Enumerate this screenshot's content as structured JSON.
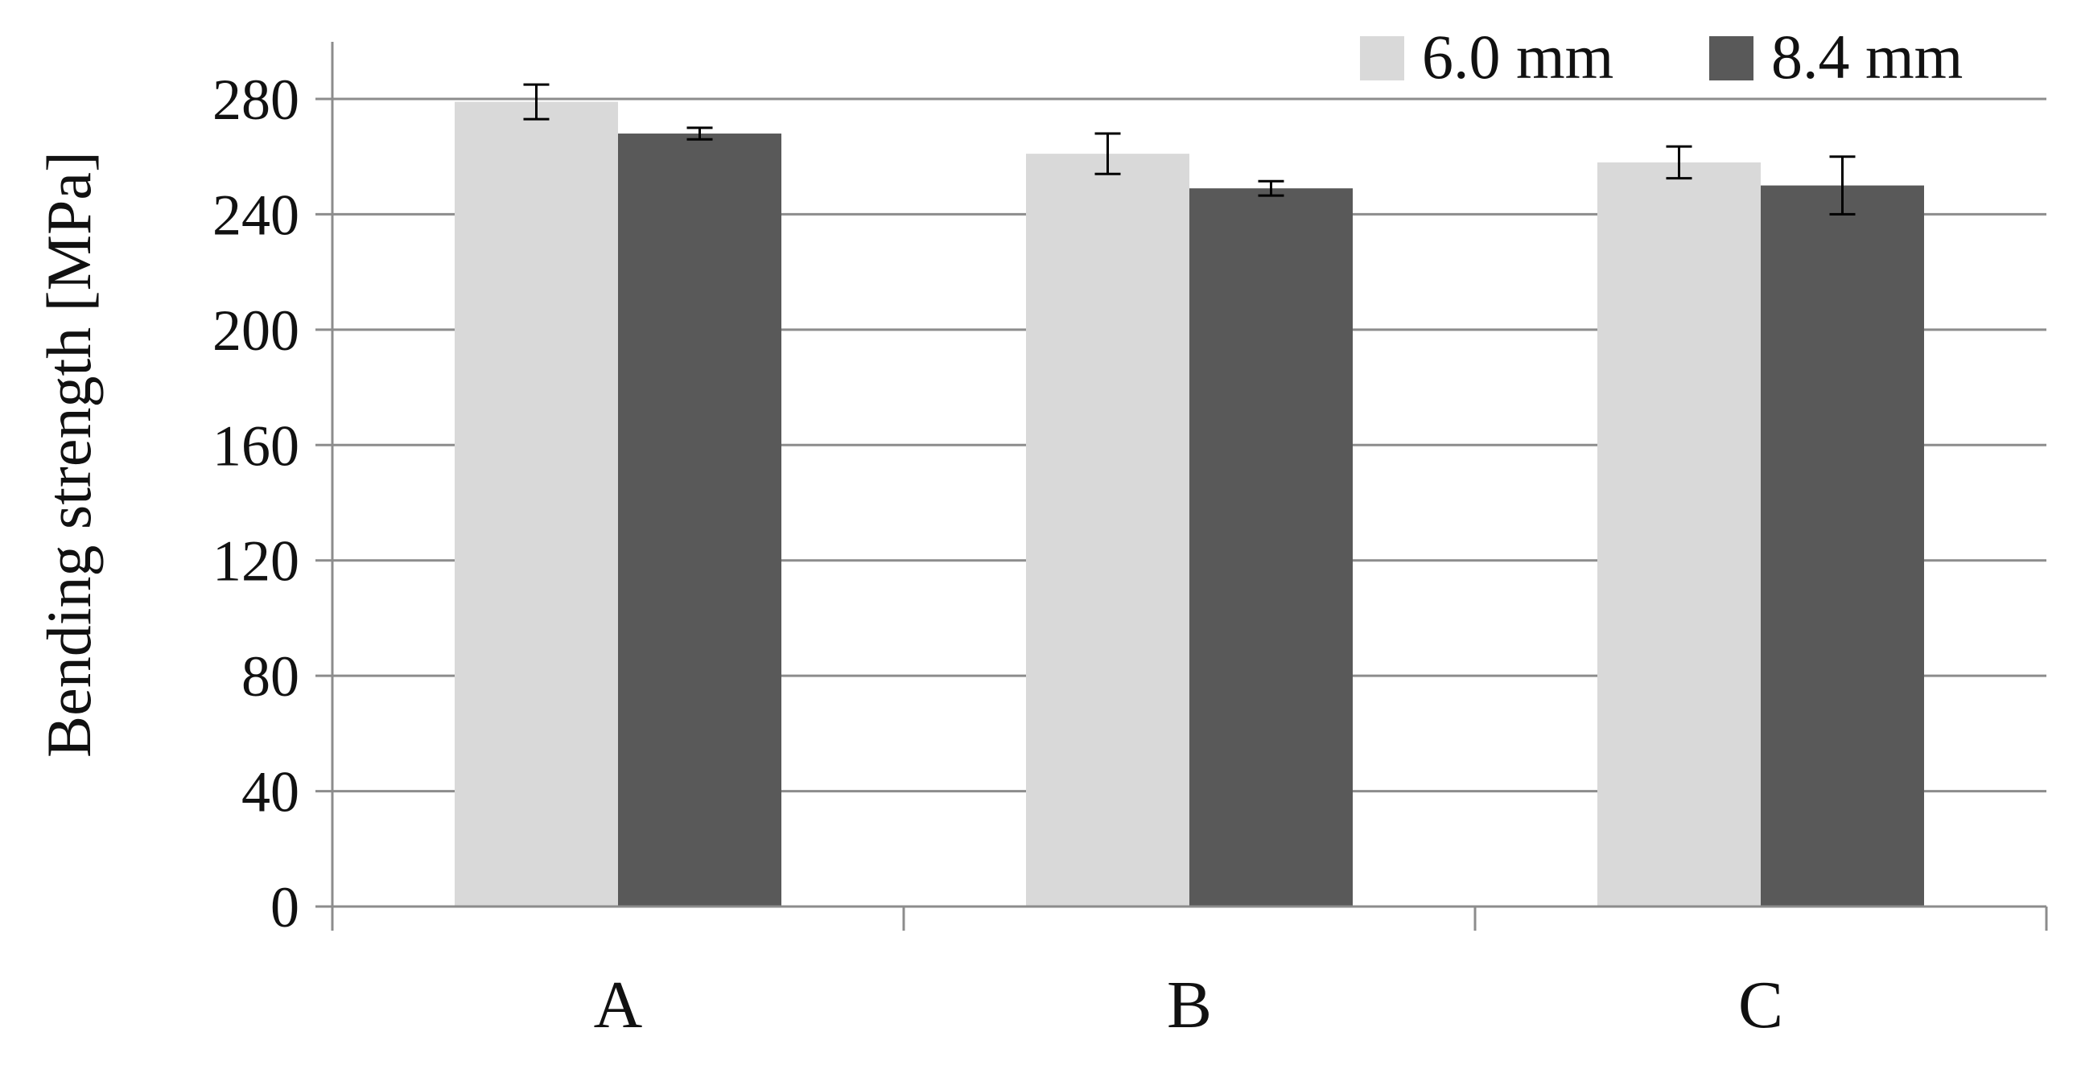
{
  "chart_data": {
    "type": "bar",
    "title": "",
    "xlabel": "",
    "ylabel": "Bending strength [MPa]",
    "ylim": [
      0,
      300
    ],
    "yticks": [
      0,
      40,
      80,
      120,
      160,
      200,
      240,
      280
    ],
    "grid": true,
    "legend_position": "top-right",
    "categories": [
      "A",
      "B",
      "C"
    ],
    "series": [
      {
        "name": "6.0 mm",
        "color": "#d9d9d9",
        "values": [
          279,
          261,
          258
        ],
        "errors": [
          6,
          7,
          5.5
        ]
      },
      {
        "name": "8.4 mm",
        "color": "#595959",
        "values": [
          268,
          249,
          250
        ],
        "errors": [
          2,
          2.5,
          10
        ]
      }
    ]
  }
}
